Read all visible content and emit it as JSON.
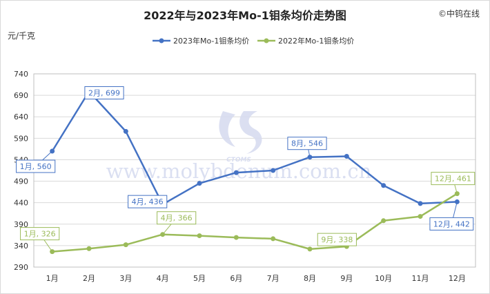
{
  "title": "2022年与2023年Mo-1钼条均价走势图",
  "copyright": "©中钨在线",
  "unit_label": "元/千克",
  "watermark": {
    "logo_text": "CTOMS",
    "site_text": "www.molybdenum.com.cn"
  },
  "colors": {
    "series_2023": "#4472c4",
    "series_2022": "#9bbb59",
    "grid": "#d9d9d9",
    "plot_border": "#bfbfbf",
    "watermark": "#d7dcf0"
  },
  "chart_data": {
    "type": "line",
    "categories": [
      "1月",
      "2月",
      "3月",
      "4月",
      "5月",
      "6月",
      "7月",
      "8月",
      "9月",
      "10月",
      "11月",
      "12月"
    ],
    "series": [
      {
        "name": "2023年Mo-1钼条均价",
        "values": [
          560,
          699,
          606,
          436,
          485,
          510,
          515,
          546,
          548,
          480,
          438,
          442
        ]
      },
      {
        "name": "2022年Mo-1钼条均价",
        "values": [
          326,
          333,
          342,
          366,
          363,
          359,
          356,
          332,
          338,
          398,
          408,
          461
        ]
      }
    ],
    "ylim": [
      290,
      740
    ],
    "yticks": [
      290,
      340,
      390,
      440,
      490,
      540,
      590,
      640,
      690,
      740
    ],
    "grid": true,
    "legend_position": "top-center",
    "annotations": [
      {
        "series": 0,
        "index": 0,
        "text": "1月, 560"
      },
      {
        "series": 0,
        "index": 1,
        "text": "2月, 699"
      },
      {
        "series": 0,
        "index": 3,
        "text": "4月, 436"
      },
      {
        "series": 0,
        "index": 7,
        "text": "8月, 546"
      },
      {
        "series": 0,
        "index": 11,
        "text": "12月, 442"
      },
      {
        "series": 1,
        "index": 0,
        "text": "1月, 326"
      },
      {
        "series": 1,
        "index": 3,
        "text": "4月, 366"
      },
      {
        "series": 1,
        "index": 8,
        "text": "9月, 338"
      },
      {
        "series": 1,
        "index": 11,
        "text": "12月, 461"
      }
    ]
  }
}
